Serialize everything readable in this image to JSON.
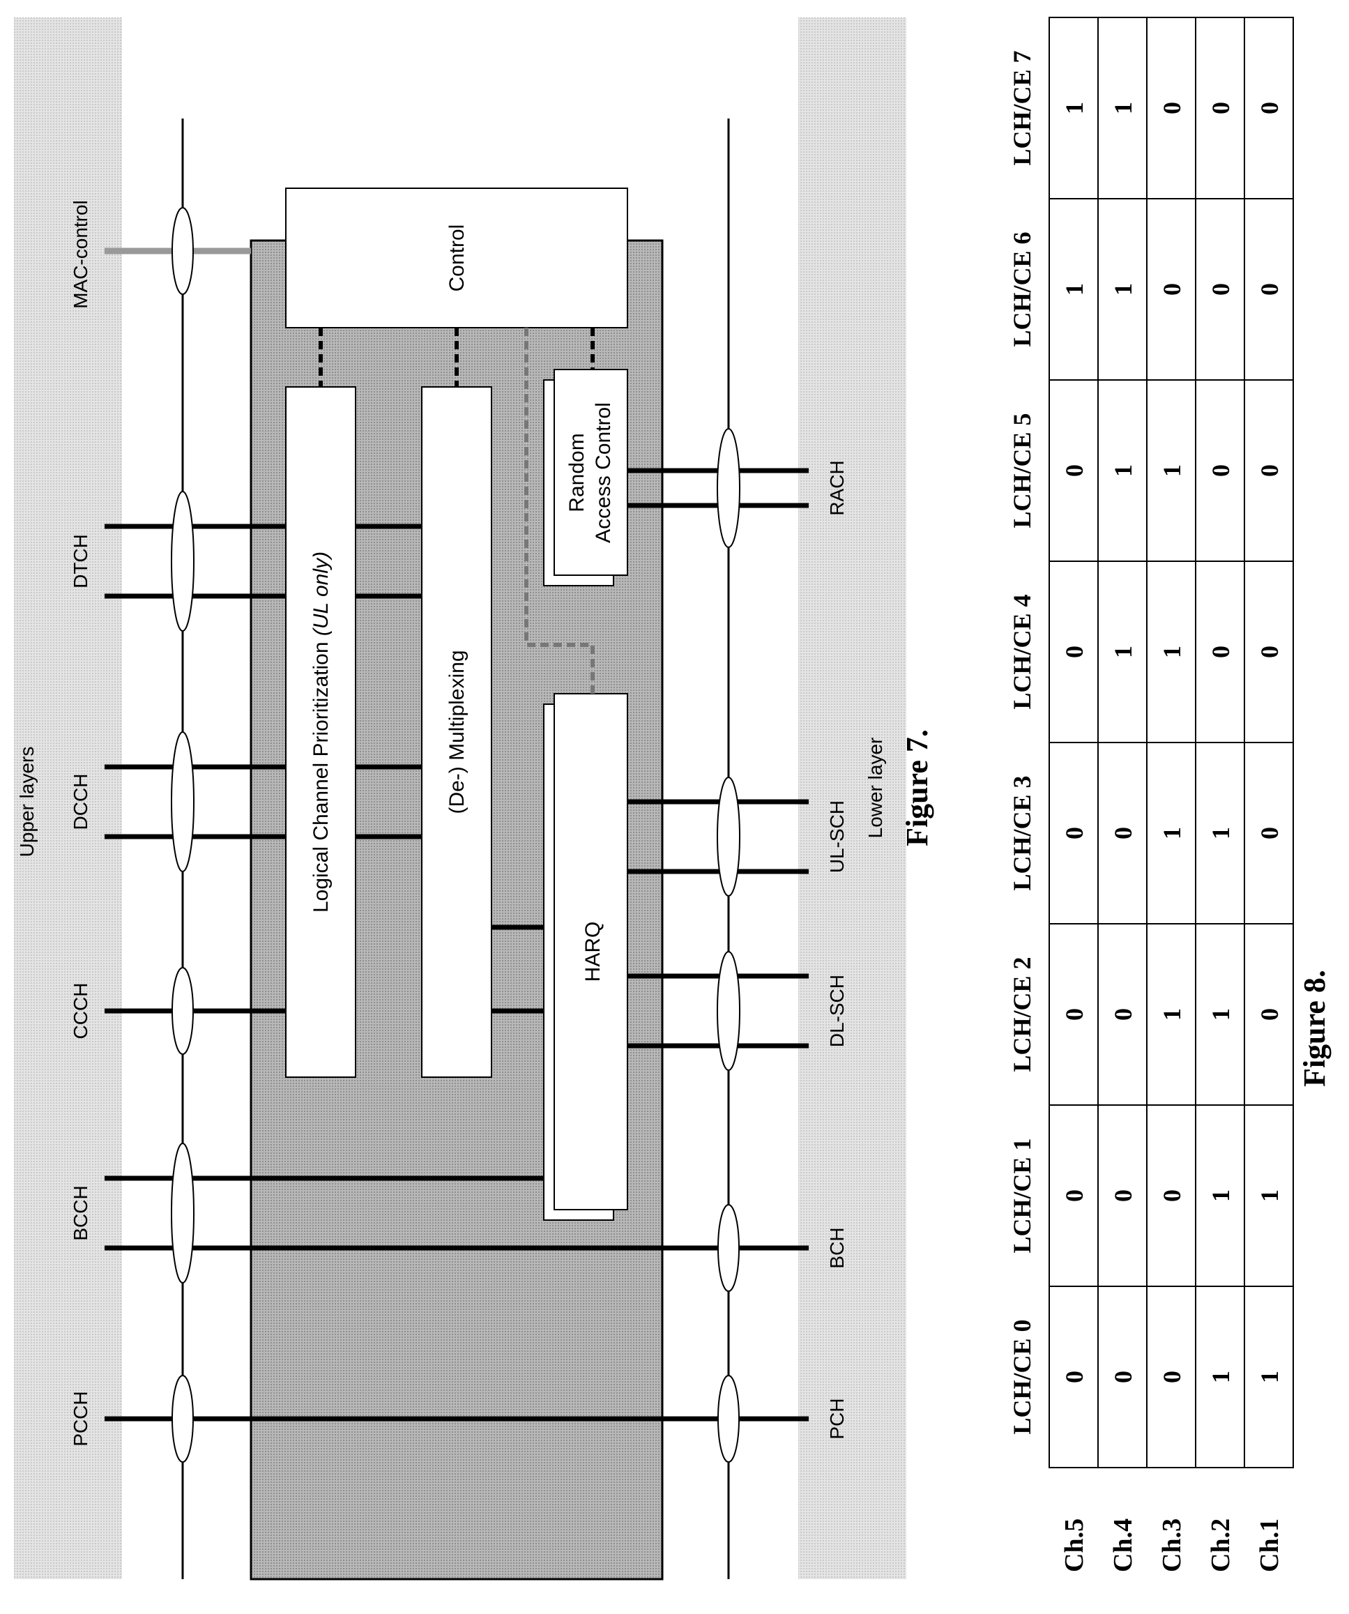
{
  "figure7": {
    "caption": "Figure 7.",
    "upper_label": "Upper layers",
    "lower_label": "Lower layer",
    "mac_control": "MAC-control",
    "logical_channels": [
      "PCCH",
      "BCCH",
      "CCCH",
      "DCCH",
      "DTCH"
    ],
    "transport_channels": [
      "PCH",
      "BCH",
      "DL-SCH",
      "UL-SCH",
      "RACH"
    ],
    "blocks": {
      "control": "Control",
      "lcp_main": "Logical Channel Prioritization ",
      "lcp_italic": "(UL only)",
      "mux": "(De-) Multiplexing",
      "harq": "HARQ",
      "rac_line1": "Random",
      "rac_line2": "Access Control"
    }
  },
  "figure8": {
    "caption": "Figure 8.",
    "columns": [
      "LCH/CE 0",
      "LCH/CE 1",
      "LCH/CE 2",
      "LCH/CE 3",
      "LCH/CE 4",
      "LCH/CE 5",
      "LCH/CE 6",
      "LCH/CE 7"
    ],
    "rows": [
      {
        "label": "Ch.5",
        "values": [
          "0",
          "0",
          "0",
          "0",
          "0",
          "0",
          "1",
          "1"
        ]
      },
      {
        "label": "Ch.4",
        "values": [
          "0",
          "0",
          "0",
          "0",
          "1",
          "1",
          "1",
          "1"
        ]
      },
      {
        "label": "Ch.3",
        "values": [
          "0",
          "0",
          "1",
          "1",
          "1",
          "1",
          "0",
          "0"
        ]
      },
      {
        "label": "Ch.2",
        "values": [
          "1",
          "1",
          "1",
          "1",
          "0",
          "0",
          "0",
          "0"
        ]
      },
      {
        "label": "Ch.1",
        "values": [
          "1",
          "1",
          "0",
          "0",
          "0",
          "0",
          "0",
          "0"
        ]
      }
    ]
  }
}
